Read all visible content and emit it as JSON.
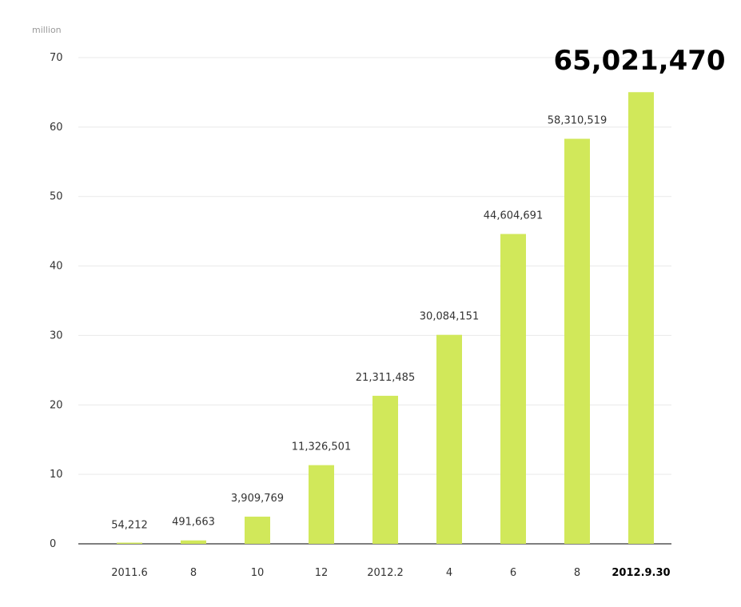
{
  "chart_data": {
    "type": "bar",
    "unit_label": "million",
    "categories": [
      "2011.6",
      "8",
      "10",
      "12",
      "2012.2",
      "4",
      "6",
      "8",
      "2012.9.30"
    ],
    "values": [
      0.054212,
      0.491663,
      3.909769,
      11.326501,
      21.311485,
      30.084151,
      44.604691,
      58.310519,
      65.02147
    ],
    "data_labels": [
      "54,212",
      "491,663",
      "3,909,769",
      "11,326,501",
      "21,311,485",
      "30,084,151",
      "44,604,691",
      "58,310,519",
      "65,021,470"
    ],
    "highlight_index": 8,
    "ylim": [
      0,
      70
    ],
    "yticks": [
      0,
      10,
      20,
      30,
      40,
      50,
      60,
      70
    ],
    "grid": true,
    "colors": {
      "bar": "#d1e85a",
      "grid": "#e9e9e9",
      "axis": "#555555",
      "tick_text": "#333333",
      "label_text": "#333333",
      "highlight_text": "#000000",
      "unit_text": "#9a9a9a"
    }
  }
}
